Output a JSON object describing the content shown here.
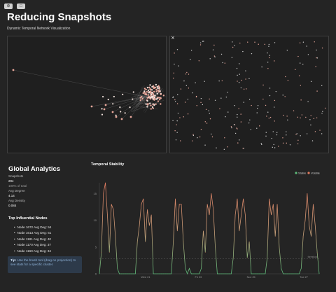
{
  "toolbar": {
    "btn1_icon": "crosshair-icon",
    "btn1_glyph": "⊕",
    "btn2_icon": "select-icon",
    "btn2_glyph": "□"
  },
  "header": {
    "title": "Reducing Snapshots",
    "subtitle": "Dynamic Temporal Network Visualization"
  },
  "projection": {
    "close_glyph": "×"
  },
  "analytics": {
    "title": "Global Analytics",
    "snapshots_label": "Snapshots",
    "snapshots_value": "294",
    "snapshots_note": "100% of total",
    "avg_degree_label": "Avg Degree",
    "avg_degree_value": "4.14",
    "avg_density_label": "Avg Density",
    "avg_density_value": "0.084"
  },
  "influential": {
    "title": "Top Influential Nodes",
    "items": [
      "Node 1672 Avg Deg: 54",
      "Node 1613 Avg Deg: 51",
      "Node 1181 Avg Deg: 40",
      "Node 1170 Avg Deg: 37",
      "Node 1160 Avg Deg: 34"
    ]
  },
  "tip": {
    "label": "Tip:",
    "text": "Use the brush tool (drag on projection) to see stats for a specific cluster."
  },
  "chart_data": {
    "type": "line",
    "title": "Temporal Stability",
    "legend": [
      "Stable",
      "Volatile"
    ],
    "legend_position": "top-right",
    "colors": {
      "stable": "#5dbb7a",
      "volatile": "#e07a5f"
    },
    "ylim": [
      0,
      17
    ],
    "yticks": [
      0,
      5,
      10,
      15
    ],
    "xtick_labels": [
      "Wed 21",
      "Fri 23",
      "Nov 25",
      "Tue 27"
    ],
    "threshold_label": "threshold",
    "threshold": 2.8,
    "values": [
      0,
      4,
      15,
      17,
      11,
      4,
      13,
      12,
      7,
      1,
      0,
      0,
      0,
      0,
      0,
      0,
      0,
      0,
      0,
      6,
      9,
      13,
      14,
      6,
      12,
      9,
      11,
      0,
      0,
      0,
      0,
      0,
      0,
      0,
      0,
      0,
      0,
      6,
      14,
      8,
      13,
      13,
      6,
      1,
      0,
      1,
      0,
      0,
      0,
      0,
      0,
      1,
      8,
      4,
      13,
      11,
      15,
      12,
      5,
      0,
      0,
      0,
      0,
      0,
      0,
      0,
      0,
      3,
      11,
      14,
      8,
      11,
      14,
      11,
      3,
      6,
      0,
      0,
      0,
      0,
      0,
      0,
      0,
      0,
      3,
      14,
      11,
      13,
      7,
      13,
      5,
      1,
      0,
      0,
      0,
      0,
      0,
      0,
      0,
      0,
      0,
      1,
      7,
      10,
      15,
      9,
      7,
      13,
      9,
      4,
      0
    ]
  }
}
